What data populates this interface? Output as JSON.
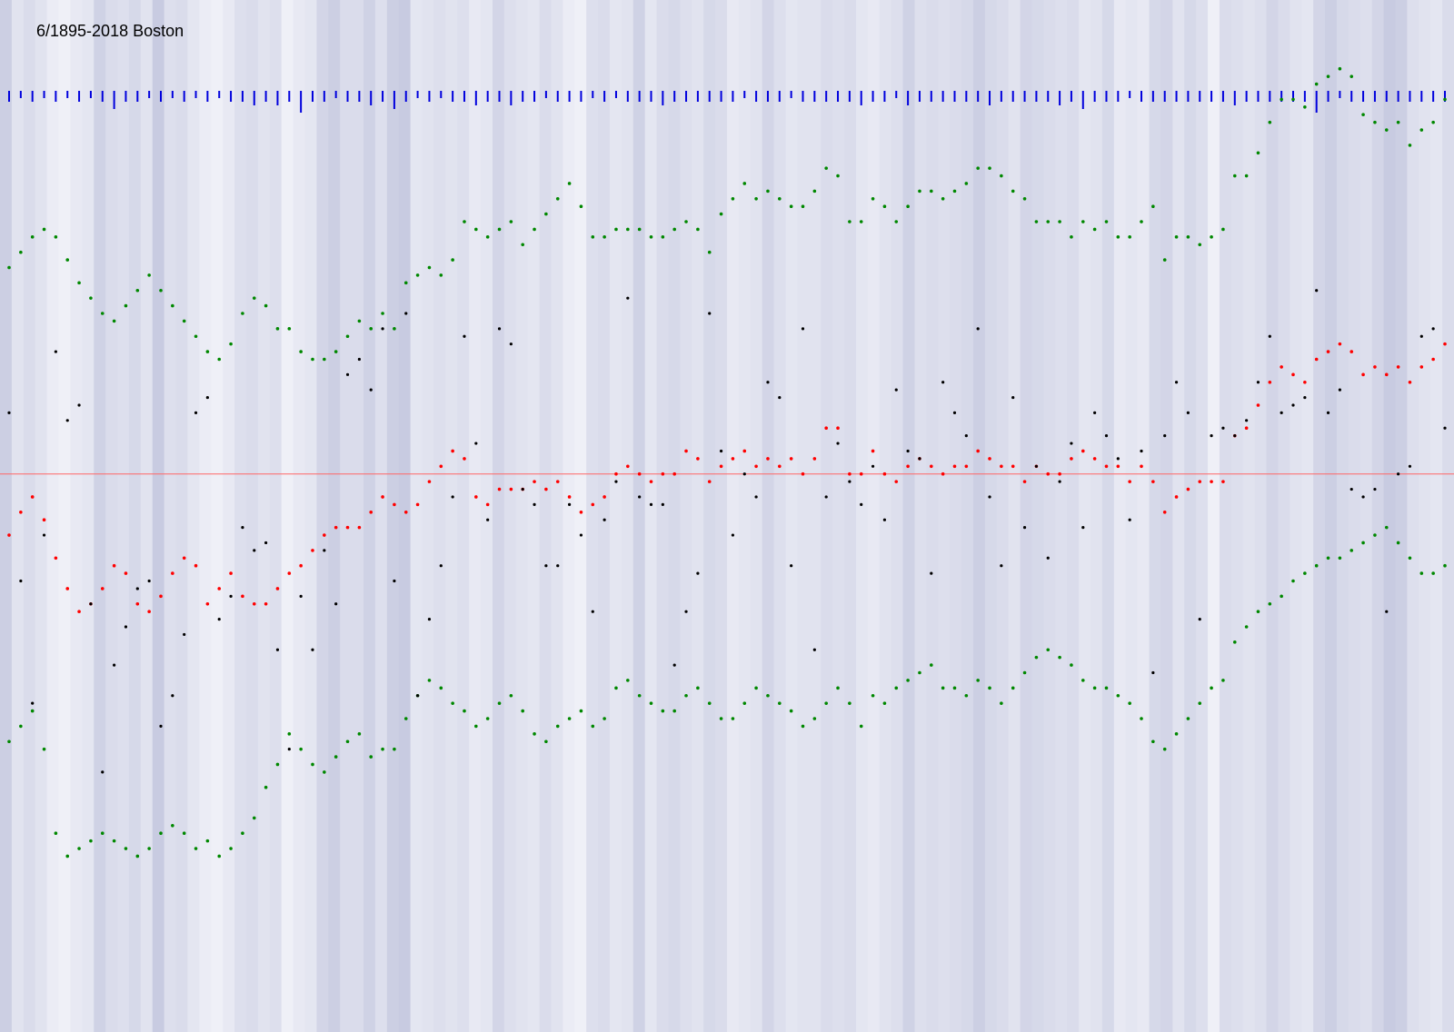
{
  "chart_data": {
    "type": "scatter",
    "title": "6/1895-2018   Boston",
    "x": {
      "start": 1895,
      "end": 2018
    },
    "stripe_intensity": [
      0.55,
      0.25,
      0.35,
      0.25,
      0.1,
      0.05,
      0.15,
      0.2,
      0.5,
      0.35,
      0.3,
      0.4,
      0.25,
      0.6,
      0.3,
      0.35,
      0.2,
      0.1,
      0.05,
      0.15,
      0.3,
      0.35,
      0.25,
      0.3,
      0.05,
      0.15,
      0.2,
      0.45,
      0.55,
      0.35,
      0.35,
      0.5,
      0.3,
      0.55,
      0.6,
      0.2,
      0.25,
      0.3,
      0.25,
      0.3,
      0.15,
      0.2,
      0.45,
      0.3,
      0.25,
      0.2,
      0.35,
      0.25,
      0.1,
      0.05,
      0.3,
      0.35,
      0.2,
      0.25,
      0.5,
      0.2,
      0.35,
      0.4,
      0.3,
      0.25,
      0.4,
      0.35,
      0.15,
      0.2,
      0.25,
      0.45,
      0.3,
      0.2,
      0.25,
      0.25,
      0.35,
      0.3,
      0.35,
      0.2,
      0.15,
      0.25,
      0.3,
      0.5,
      0.3,
      0.35,
      0.3,
      0.35,
      0.4,
      0.55,
      0.4,
      0.35,
      0.25,
      0.45,
      0.4,
      0.35,
      0.3,
      0.35,
      0.2,
      0.25,
      0.4,
      0.15,
      0.2,
      0.15,
      0.4,
      0.45,
      0.25,
      0.4,
      0.3,
      0.05,
      0.35,
      0.3,
      0.25,
      0.3,
      0.45,
      0.35,
      0.25,
      0.2,
      0.45,
      0.55,
      0.4,
      0.35,
      0.3,
      0.45,
      0.6,
      0.55,
      0.3,
      0.25,
      0.2,
      0.35
    ],
    "blue_ticks": [
      3,
      2,
      3,
      2,
      3,
      2,
      3,
      2,
      3,
      5,
      3,
      3,
      2,
      3,
      2,
      3,
      2,
      3,
      2,
      3,
      3,
      4,
      3,
      4,
      3,
      6,
      3,
      3,
      2,
      3,
      3,
      4,
      3,
      5,
      3,
      2,
      3,
      2,
      3,
      3,
      4,
      3,
      3,
      4,
      3,
      3,
      2,
      3,
      3,
      3,
      2,
      3,
      2,
      3,
      3,
      3,
      4,
      3,
      3,
      3,
      3,
      3,
      3,
      2,
      3,
      3,
      3,
      2,
      3,
      3,
      3,
      3,
      3,
      4,
      3,
      3,
      2,
      4,
      3,
      3,
      3,
      3,
      3,
      3,
      4,
      3,
      3,
      3,
      3,
      3,
      4,
      3,
      5,
      3,
      3,
      3,
      2,
      3,
      3,
      3,
      3,
      3,
      3,
      3,
      3,
      4,
      3,
      3,
      3,
      3,
      3,
      3,
      6,
      3,
      2,
      3,
      3,
      3,
      3,
      3,
      3,
      3,
      3,
      3
    ],
    "series": [
      {
        "color": "#008800",
        "values": [
          72.0,
          72.2,
          72.4,
          72.5,
          72.4,
          72.1,
          71.8,
          71.6,
          71.4,
          71.3,
          71.5,
          71.7,
          71.9,
          71.7,
          71.5,
          71.3,
          71.1,
          70.9,
          70.8,
          71.0,
          71.4,
          71.6,
          71.5,
          71.2,
          71.2,
          70.9,
          70.8,
          70.8,
          70.9,
          71.1,
          71.3,
          71.2,
          71.4,
          71.2,
          71.8,
          71.9,
          72.0,
          71.9,
          72.1,
          72.6,
          72.5,
          72.4,
          72.5,
          72.6,
          72.3,
          72.5,
          72.7,
          72.9,
          73.1,
          72.8,
          72.4,
          72.4,
          72.5,
          72.5,
          72.5,
          72.4,
          72.4,
          72.5,
          72.6,
          72.5,
          72.2,
          72.7,
          72.9,
          73.1,
          72.9,
          73.0,
          72.9,
          72.8,
          72.8,
          73.0,
          73.3,
          73.2,
          72.6,
          72.6,
          72.9,
          72.8,
          72.6,
          72.8,
          73.0,
          73.0,
          72.9,
          73.0,
          73.1,
          73.3,
          73.3,
          73.2,
          73.0,
          72.9,
          72.6,
          72.6,
          72.6,
          72.4,
          72.6,
          72.5,
          72.6,
          72.4,
          72.4,
          72.6,
          72.8,
          72.1,
          72.4,
          72.4,
          72.3,
          72.4,
          72.5,
          73.2,
          73.2,
          73.5,
          73.9,
          74.2,
          74.2,
          74.1,
          74.4,
          74.5,
          74.6,
          74.5,
          74.0,
          73.9,
          73.8,
          73.9,
          73.6,
          73.8,
          73.9,
          74.2
        ],
        "name": ""
      },
      {
        "color": "#ff0000",
        "values": [
          68.5,
          68.8,
          69.0,
          68.7,
          68.2,
          67.8,
          67.5,
          67.6,
          67.8,
          68.1,
          68.0,
          67.6,
          67.5,
          67.7,
          68.0,
          68.2,
          68.1,
          67.6,
          67.8,
          68.0,
          67.7,
          67.6,
          67.6,
          67.8,
          68.0,
          68.1,
          68.3,
          68.5,
          68.6,
          68.6,
          68.6,
          68.8,
          69.0,
          68.9,
          68.8,
          68.9,
          69.2,
          69.4,
          69.6,
          69.5,
          69.0,
          68.9,
          69.1,
          69.1,
          69.1,
          69.2,
          69.1,
          69.2,
          69.0,
          68.8,
          68.9,
          69.0,
          69.3,
          69.4,
          69.3,
          69.2,
          69.3,
          69.3,
          69.6,
          69.5,
          69.2,
          69.4,
          69.5,
          69.6,
          69.4,
          69.5,
          69.4,
          69.5,
          69.3,
          69.5,
          69.9,
          69.9,
          69.3,
          69.3,
          69.6,
          69.3,
          69.2,
          69.4,
          69.5,
          69.4,
          69.3,
          69.4,
          69.4,
          69.6,
          69.5,
          69.4,
          69.4,
          69.2,
          69.4,
          69.3,
          69.3,
          69.5,
          69.6,
          69.5,
          69.4,
          69.4,
          69.2,
          69.4,
          69.2,
          68.8,
          69.0,
          69.1,
          69.2,
          69.2,
          69.2,
          69.8,
          69.9,
          70.2,
          70.5,
          70.7,
          70.6,
          70.5,
          70.8,
          70.9,
          71.0,
          70.9,
          70.6,
          70.7,
          70.6,
          70.7,
          70.5,
          70.7,
          70.8,
          71.0
        ],
        "name": ""
      },
      {
        "color": "#008800",
        "values": [
          65.8,
          66.0,
          66.2,
          65.7,
          64.6,
          64.3,
          64.4,
          64.5,
          64.6,
          64.5,
          64.4,
          64.3,
          64.4,
          64.6,
          64.7,
          64.6,
          64.4,
          64.5,
          64.3,
          64.4,
          64.6,
          64.8,
          65.2,
          65.5,
          65.9,
          65.7,
          65.5,
          65.4,
          65.6,
          65.8,
          65.9,
          65.6,
          65.7,
          65.7,
          66.1,
          66.4,
          66.6,
          66.5,
          66.3,
          66.2,
          66.0,
          66.1,
          66.3,
          66.4,
          66.2,
          65.9,
          65.8,
          66.0,
          66.1,
          66.2,
          66.0,
          66.1,
          66.5,
          66.6,
          66.4,
          66.3,
          66.2,
          66.2,
          66.4,
          66.5,
          66.3,
          66.1,
          66.1,
          66.3,
          66.5,
          66.4,
          66.3,
          66.2,
          66.0,
          66.1,
          66.3,
          66.5,
          66.3,
          66.0,
          66.4,
          66.3,
          66.5,
          66.6,
          66.7,
          66.8,
          66.5,
          66.5,
          66.4,
          66.6,
          66.5,
          66.3,
          66.5,
          66.7,
          66.9,
          67.0,
          66.9,
          66.8,
          66.6,
          66.5,
          66.5,
          66.4,
          66.3,
          66.1,
          65.8,
          65.7,
          65.9,
          66.1,
          66.3,
          66.5,
          66.6,
          67.1,
          67.3,
          67.5,
          67.6,
          67.7,
          67.9,
          68.0,
          68.1,
          68.2,
          68.2,
          68.3,
          68.4,
          68.5,
          68.6,
          68.4,
          68.2,
          68.0,
          68.0,
          68.1
        ],
        "name": ""
      },
      {
        "color": "#000000",
        "values": [
          70.1,
          67.9,
          66.3,
          68.5,
          70.9,
          70.0,
          70.2,
          67.6,
          65.4,
          66.8,
          67.3,
          67.8,
          67.9,
          66.0,
          66.4,
          67.2,
          70.1,
          70.3,
          67.4,
          67.7,
          68.6,
          68.3,
          68.4,
          67.0,
          65.7,
          67.7,
          67.0,
          68.3,
          67.6,
          70.6,
          70.8,
          70.4,
          71.2,
          67.9,
          71.4,
          66.4,
          67.4,
          68.1,
          69.0,
          71.1,
          69.7,
          68.7,
          71.2,
          71.0,
          69.1,
          68.9,
          68.1,
          68.1,
          68.9,
          68.5,
          67.5,
          68.7,
          69.2,
          71.6,
          69.0,
          68.9,
          68.9,
          66.8,
          67.5,
          68.0,
          71.4,
          69.6,
          68.5,
          69.3,
          69.0,
          70.5,
          70.3,
          68.1,
          71.2,
          67.0,
          69.0,
          69.7,
          69.2,
          68.9,
          69.4,
          68.7,
          70.4,
          69.6,
          69.5,
          68.0,
          70.5,
          70.1,
          69.8,
          71.2,
          69.0,
          68.1,
          70.3,
          68.6,
          69.4,
          68.2,
          69.2,
          69.7,
          68.6,
          70.1,
          69.8,
          69.5,
          68.7,
          69.6,
          66.7,
          69.8,
          70.5,
          70.1,
          67.4,
          69.8,
          69.9,
          69.8,
          70.0,
          70.5,
          71.1,
          70.1,
          70.2,
          70.3,
          71.7,
          70.1,
          70.4,
          69.1,
          69.0,
          69.1,
          67.5,
          69.3,
          69.4,
          71.1,
          71.2,
          69.9
        ]
      }
    ],
    "reference_line": {
      "value": 69.3,
      "color": "#ff6666"
    },
    "ylim": [
      62.0,
      75.5
    ],
    "grid": false,
    "legend": "none"
  }
}
